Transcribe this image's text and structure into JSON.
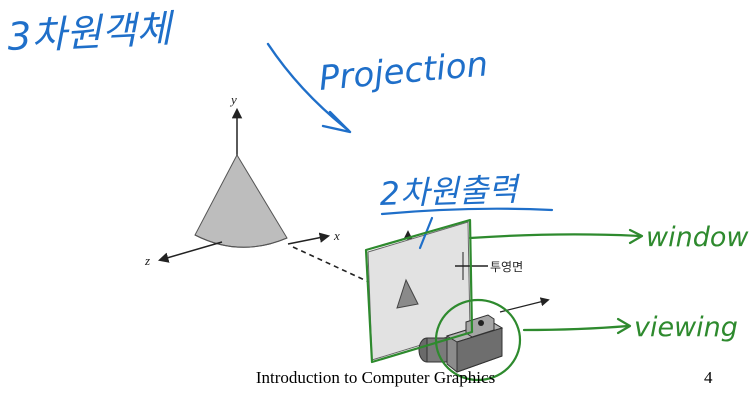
{
  "slide": {
    "footer_title": "Introduction to Computer Graphics",
    "page_number": "4"
  },
  "figure": {
    "axis_x": "x",
    "axis_y": "y",
    "axis_z": "z",
    "projection_plane_label": "투영면"
  },
  "annotations": {
    "object_3d": "3차원객체",
    "projection": "Projection",
    "output_2d": "2차원출력",
    "window": "window",
    "viewing": "viewing"
  },
  "colors": {
    "ink_blue": "#1f6fc9",
    "ink_green": "#2e8a2e",
    "cone_gray": "#bdbdbd"
  }
}
